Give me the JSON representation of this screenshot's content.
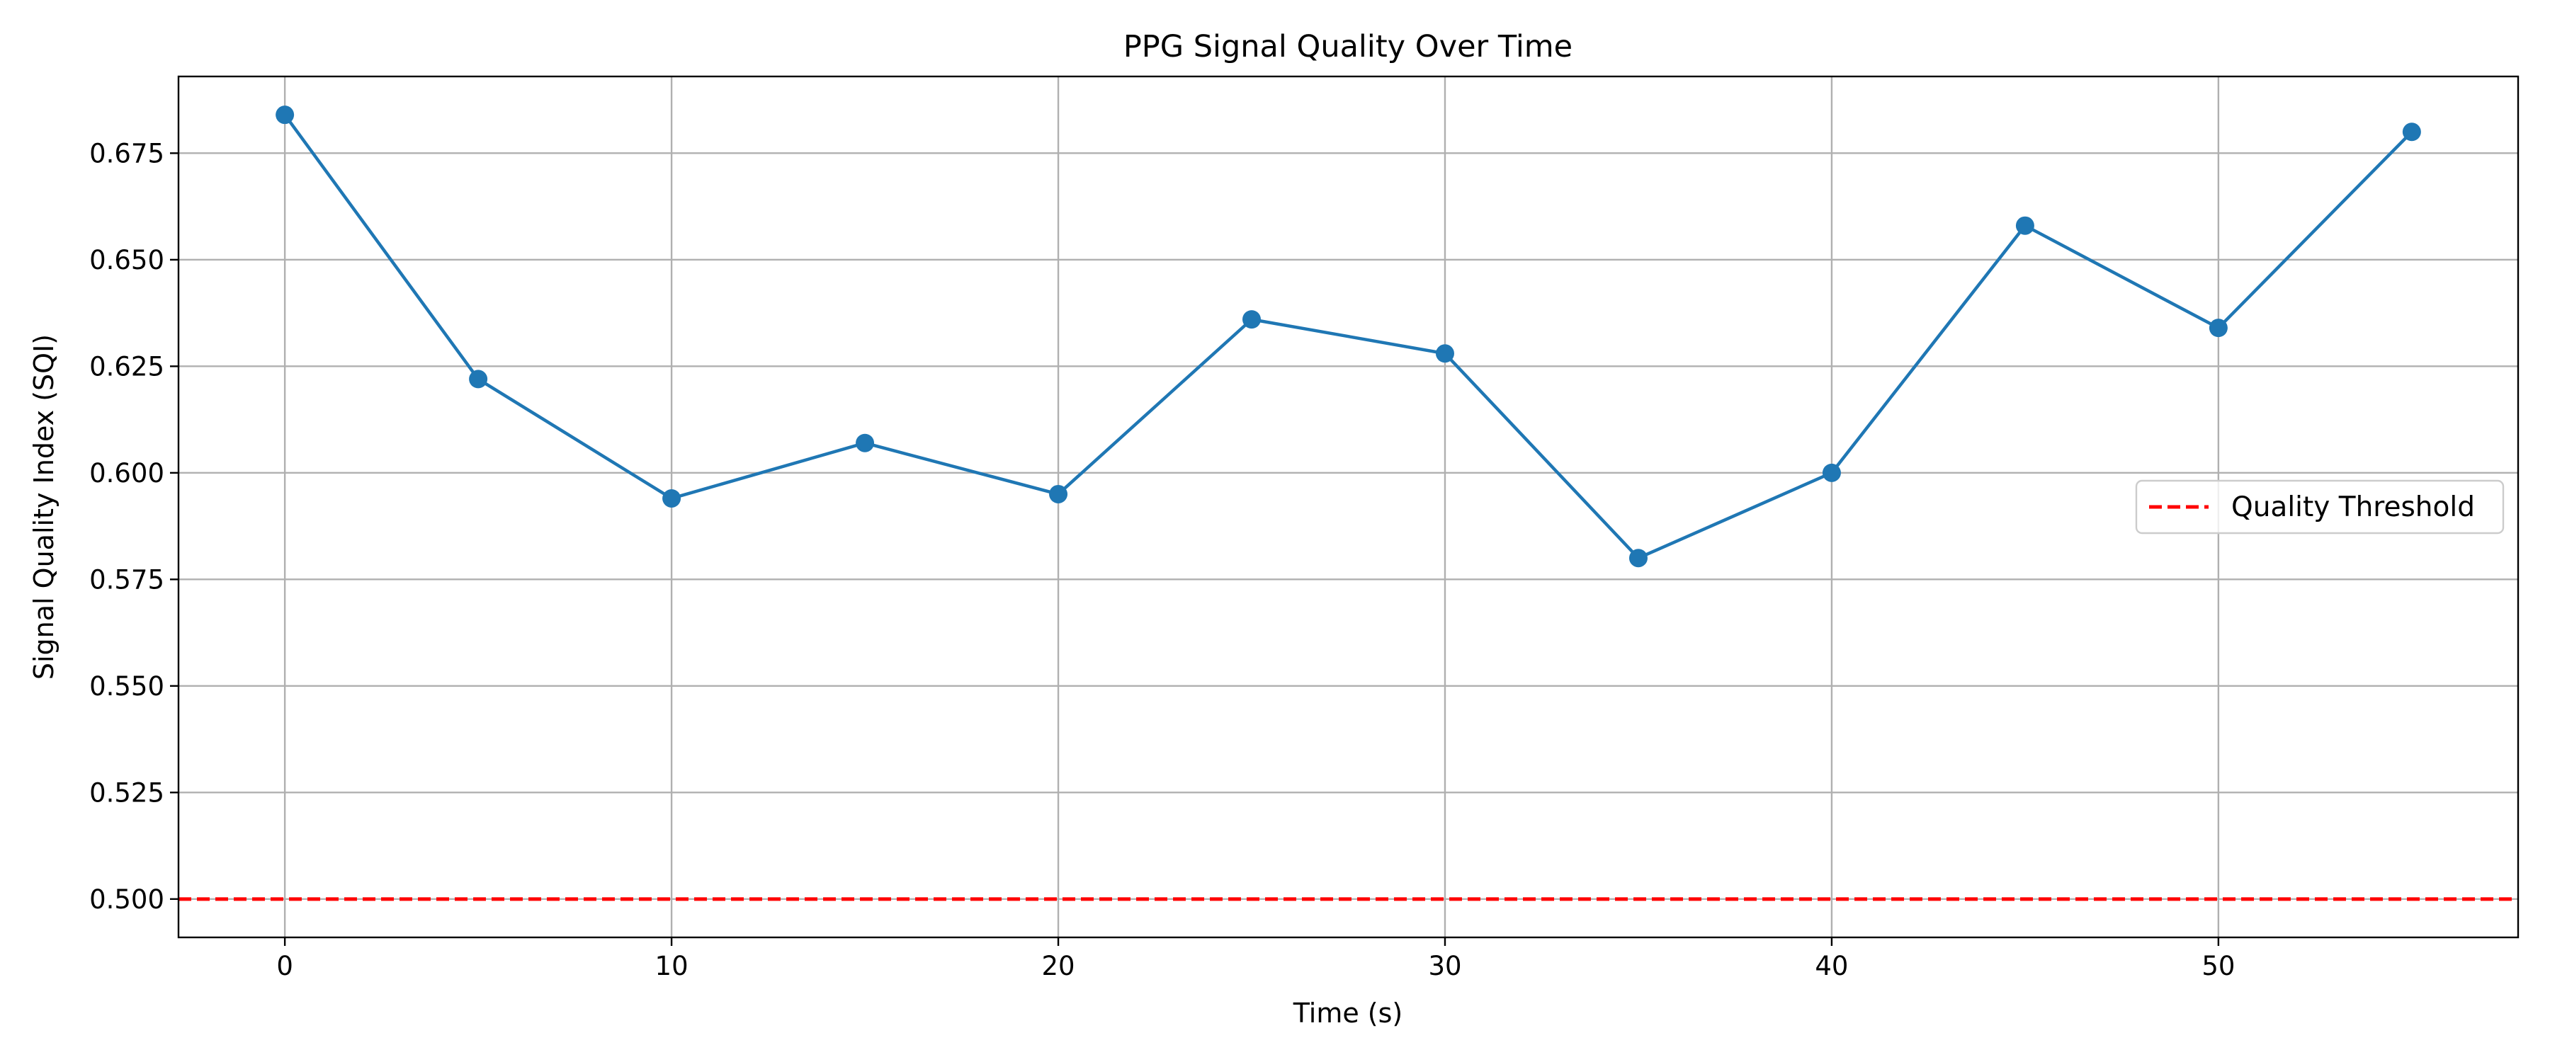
{
  "chart_data": {
    "type": "line",
    "title": "PPG Signal Quality Over Time",
    "xlabel": "Time (s)",
    "ylabel": "Signal Quality Index (SQI)",
    "xlim": [
      -2.75,
      57.75
    ],
    "ylim": [
      0.491,
      0.693
    ],
    "xticks": [
      0,
      10,
      20,
      30,
      40,
      50
    ],
    "xtick_labels": [
      "0",
      "10",
      "20",
      "30",
      "40",
      "50"
    ],
    "yticks": [
      0.5,
      0.525,
      0.55,
      0.575,
      0.6,
      0.625,
      0.65,
      0.675
    ],
    "ytick_labels": [
      "0.500",
      "0.525",
      "0.550",
      "0.575",
      "0.600",
      "0.625",
      "0.650",
      "0.675"
    ],
    "grid": true,
    "series": [
      {
        "name": "",
        "color": "#1f77b4",
        "marker": "circle",
        "x": [
          0,
          5,
          10,
          15,
          20,
          25,
          30,
          35,
          40,
          45,
          50,
          55
        ],
        "y": [
          0.684,
          0.622,
          0.594,
          0.607,
          0.595,
          0.636,
          0.628,
          0.58,
          0.6,
          0.658,
          0.634,
          0.68
        ]
      }
    ],
    "threshold": {
      "name": "Quality Threshold",
      "value": 0.5,
      "color": "#ff0000",
      "style": "dashed"
    },
    "legend": {
      "placement": "center-right",
      "entries": [
        "Quality Threshold"
      ]
    }
  }
}
